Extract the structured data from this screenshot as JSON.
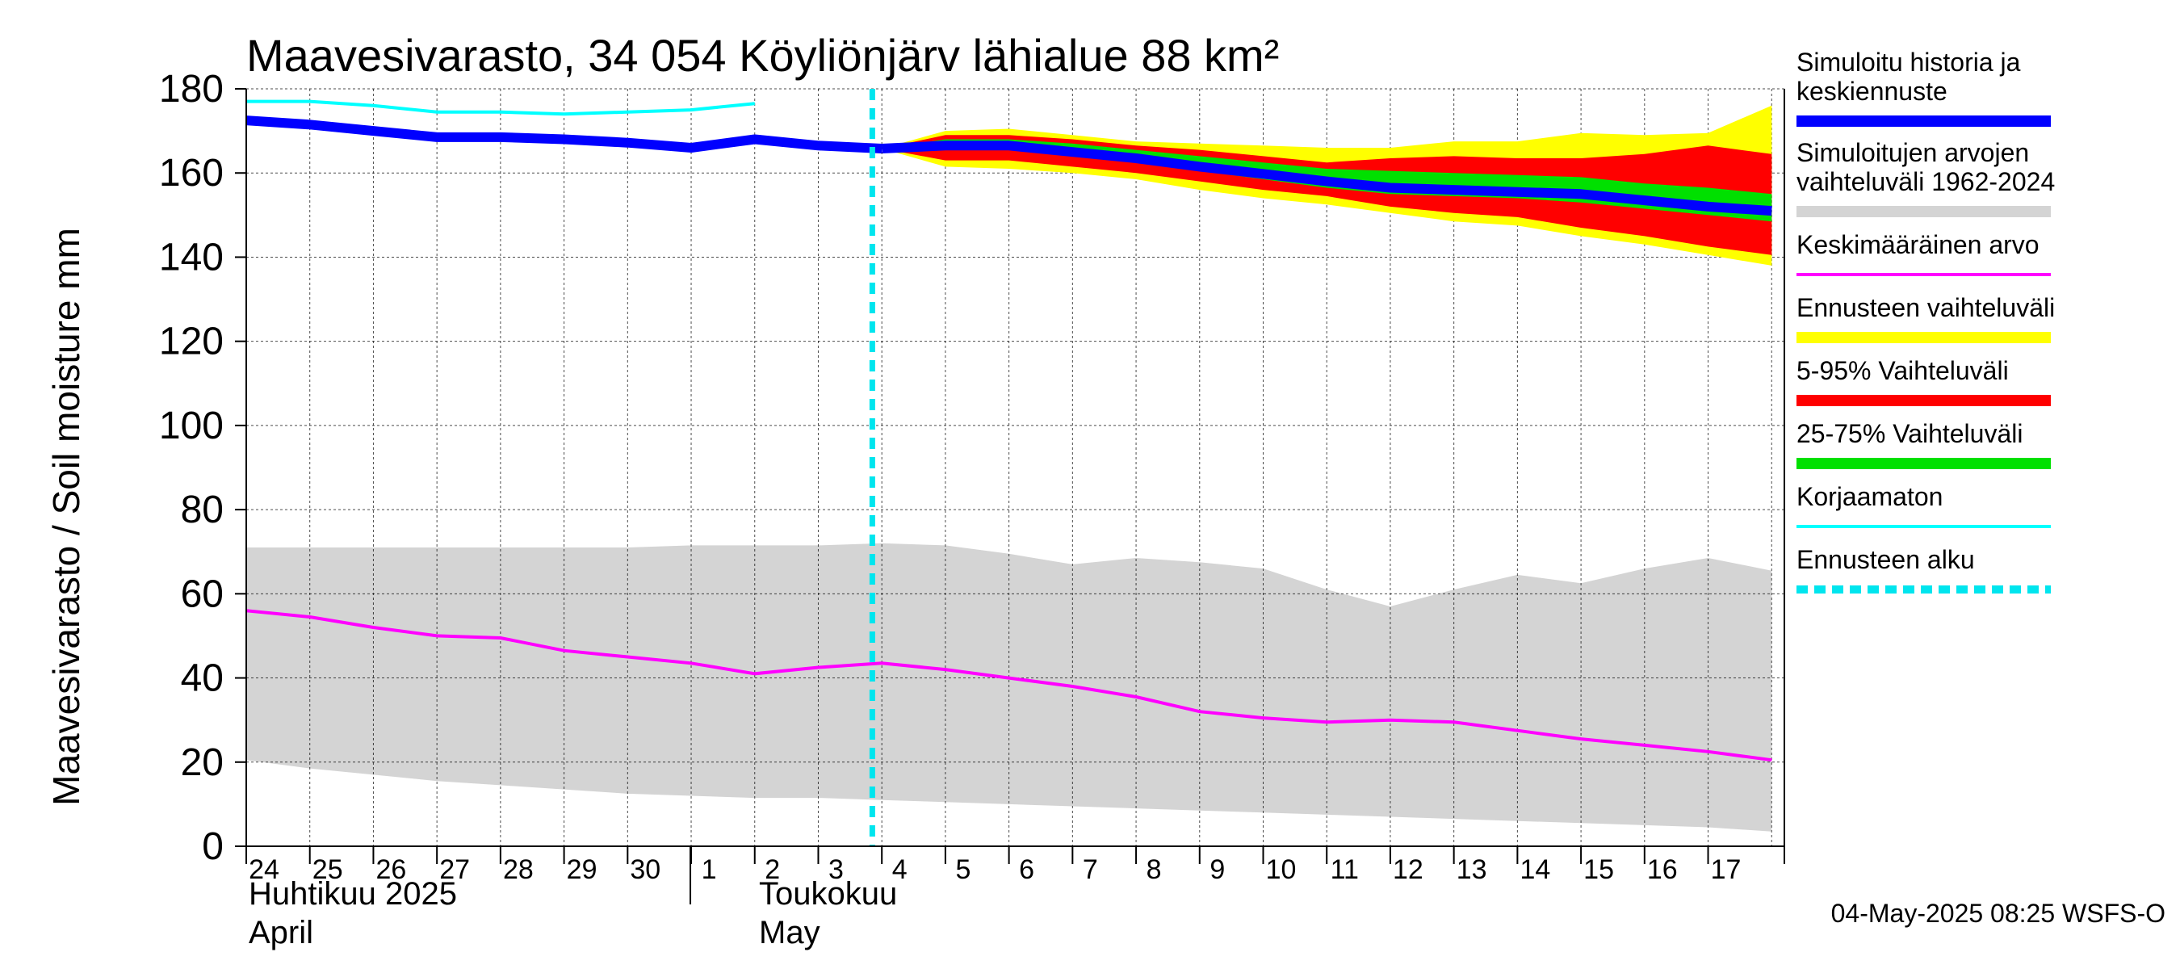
{
  "chart_data": {
    "type": "area",
    "title": "Maavesivarasto, 34 054 Köyliönjärv lähialue 88 km²",
    "ylabel": "Maavesivarasto / Soil moisture   mm",
    "ylim": [
      0,
      180
    ],
    "y_ticks": [
      "0",
      "20",
      "40",
      "60",
      "80",
      "100",
      "120",
      "140",
      "160",
      "180"
    ],
    "x_day_labels": [
      "24",
      "25",
      "26",
      "27",
      "28",
      "29",
      "30",
      "1",
      "2",
      "3",
      "4",
      "5",
      "6",
      "7",
      "8",
      "9",
      "10",
      "11",
      "12",
      "13",
      "14",
      "15",
      "16",
      "17"
    ],
    "x_months": [
      {
        "line1": "Huhtikuu  2025",
        "line2": "April"
      },
      {
        "line1": "Toukokuu",
        "line2": "May"
      }
    ],
    "forecast_start": "2025-05-04",
    "grid": true,
    "timestamp": "04-May-2025 08:25 WSFS-O",
    "colors": {
      "history": "#0000ff",
      "range": "#d4d4d4",
      "mean": "#ff00ff",
      "forecast_range": "#ffff00",
      "p5_95": "#ff0000",
      "p25_75": "#00e000",
      "uncorrected": "#00ffff",
      "forecast_start": "#00e5ee"
    },
    "legend": [
      {
        "label": "Simuloitu historia ja keskiennuste",
        "color": "#0000ff",
        "style": "solid"
      },
      {
        "label": "Simuloitujen arvojen vaihteluväli 1962-2024",
        "color": "#d4d4d4",
        "style": "solid"
      },
      {
        "label": "Keskimääräinen arvo",
        "color": "#ff00ff",
        "style": "thin"
      },
      {
        "label": "Ennusteen vaihteluväli",
        "color": "#ffff00",
        "style": "solid"
      },
      {
        "label": "5-95% Vaihteluväli",
        "color": "#ff0000",
        "style": "solid"
      },
      {
        "label": "25-75% Vaihteluväli",
        "color": "#00e000",
        "style": "solid"
      },
      {
        "label": "Korjaamaton",
        "color": "#00ffff",
        "style": "thin"
      },
      {
        "label": "Ennusteen alku",
        "color": "#00e5ee",
        "style": "dashed"
      }
    ],
    "series": {
      "history": {
        "x": [
          24,
          25,
          26,
          27,
          28,
          29,
          30,
          31,
          32,
          33,
          34
        ],
        "y": [
          172.5,
          171.5,
          170,
          168.5,
          168.5,
          168,
          167.2,
          166,
          168,
          166.5,
          165.8
        ]
      },
      "uncorrected": {
        "x": [
          24,
          25,
          26,
          27,
          28,
          29,
          30,
          31,
          32
        ],
        "y": [
          177,
          177,
          176,
          174.5,
          174.5,
          174,
          174.5,
          175,
          176.5
        ]
      },
      "range_upper": {
        "x": [
          24,
          25,
          26,
          27,
          28,
          29,
          30,
          31,
          32,
          33,
          34,
          35,
          36,
          37,
          38,
          39,
          40,
          41,
          42,
          43,
          44,
          45,
          46,
          47,
          48
        ],
        "y": [
          71,
          71,
          71,
          71,
          71,
          71,
          71,
          71.5,
          71.5,
          71.5,
          72,
          71.5,
          69.5,
          67,
          68.5,
          67.5,
          66,
          61,
          57,
          61,
          64.5,
          62.5,
          66,
          68.5,
          65.5
        ]
      },
      "range_lower": {
        "x": [
          24,
          25,
          26,
          27,
          28,
          29,
          30,
          31,
          32,
          33,
          34,
          35,
          36,
          37,
          38,
          39,
          40,
          41,
          42,
          43,
          44,
          45,
          46,
          47,
          48
        ],
        "y": [
          20.5,
          18.5,
          17,
          15.5,
          14.5,
          13.5,
          12.5,
          12,
          11.5,
          11.5,
          11,
          10.5,
          10,
          9.5,
          9,
          8.5,
          8,
          7.5,
          7,
          6.5,
          6,
          5.5,
          5,
          4.5,
          3.5
        ]
      },
      "mean": {
        "x": [
          24,
          25,
          26,
          27,
          28,
          29,
          30,
          31,
          32,
          33,
          34,
          35,
          36,
          37,
          38,
          39,
          40,
          41,
          42,
          43,
          44,
          45,
          46,
          47,
          48
        ],
        "y": [
          56,
          54.5,
          52,
          50,
          49.5,
          46.5,
          45,
          43.5,
          41,
          42.5,
          43.5,
          42,
          40,
          38,
          35.5,
          32,
          30.5,
          29.5,
          30,
          29.5,
          27.5,
          25.5,
          24,
          22.5,
          20.5
        ]
      },
      "forecast_x": [
        34,
        35,
        36,
        37,
        38,
        39,
        40,
        41,
        42,
        43,
        44,
        45,
        46,
        47,
        48
      ],
      "forecast_max": [
        165.8,
        170,
        170.5,
        169,
        167.5,
        167,
        166.5,
        166,
        166,
        167.5,
        167.5,
        169.5,
        169,
        169.5,
        176
      ],
      "forecast_p95": [
        165.8,
        169,
        169,
        168,
        166.5,
        165.5,
        164,
        162.5,
        163.5,
        164,
        163.5,
        163.5,
        164.5,
        166.5,
        164.5
      ],
      "forecast_p75": [
        165.8,
        168,
        168,
        167,
        165.5,
        164,
        162.5,
        161,
        160.5,
        160,
        159.5,
        159,
        157.5,
        156.5,
        155
      ],
      "forecast_median": [
        165.8,
        166.5,
        166.5,
        165,
        163.5,
        161.5,
        159.8,
        158,
        156.5,
        156,
        155.5,
        155,
        153.5,
        152,
        151
      ],
      "forecast_p25": [
        165.8,
        165.5,
        165.5,
        164,
        162.5,
        160.5,
        158.5,
        156.5,
        155,
        154.5,
        154,
        153,
        151.5,
        150,
        148.5
      ],
      "forecast_p5": [
        165.8,
        163,
        163,
        161.5,
        160,
        158,
        156,
        154.5,
        152,
        150.5,
        149.5,
        147,
        145,
        142.5,
        140.5
      ],
      "forecast_min": [
        165.8,
        161.5,
        161,
        160,
        158.5,
        156,
        154,
        152.5,
        150.5,
        148.5,
        147.5,
        145,
        143,
        140.5,
        138
      ]
    }
  }
}
